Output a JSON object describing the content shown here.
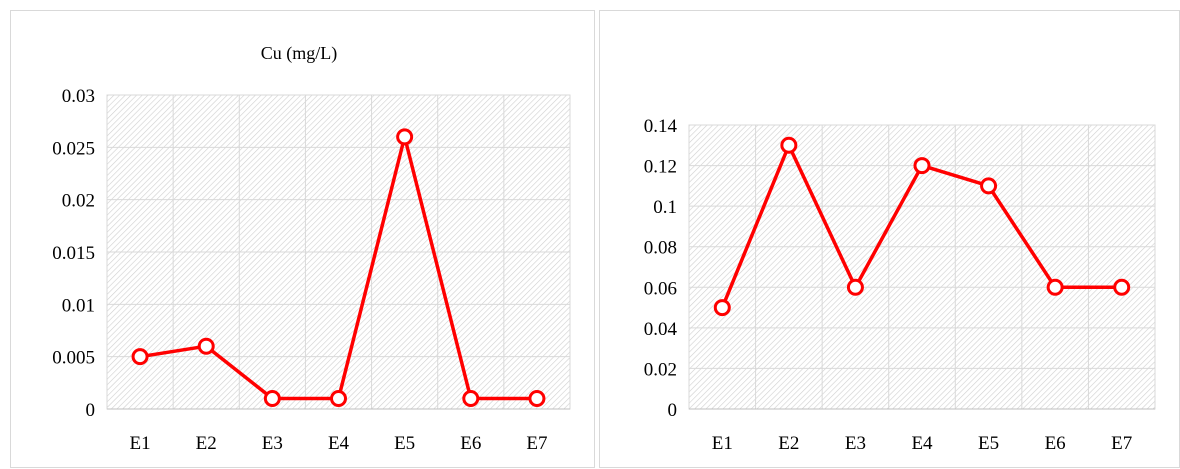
{
  "chart_data": [
    {
      "type": "line",
      "title": "Cu (mg/L)",
      "categories": [
        "E1",
        "E2",
        "E3",
        "E4",
        "E5",
        "E6",
        "E7"
      ],
      "series": [
        {
          "values": [
            0.005,
            0.006,
            0.001,
            0.001,
            0.026,
            0.001,
            0.001
          ]
        }
      ],
      "ylim": [
        0,
        0.03
      ],
      "yticks": [
        "0",
        "0.005",
        "0.01",
        "0.015",
        "0.02",
        "0.025",
        "0.03"
      ],
      "grid": true,
      "plot_fill": "diagonal-hatch",
      "line_color": "#ff0000",
      "marker": "hollow-circle"
    },
    {
      "type": "line",
      "title": "",
      "categories": [
        "E1",
        "E2",
        "E3",
        "E4",
        "E5",
        "E6",
        "E7"
      ],
      "series": [
        {
          "values": [
            0.05,
            0.13,
            0.06,
            0.12,
            0.11,
            0.06,
            0.06
          ]
        }
      ],
      "ylim": [
        0,
        0.14
      ],
      "yticks": [
        "0",
        "0.02",
        "0.04",
        "0.06",
        "0.08",
        "0.1",
        "0.12",
        "0.14"
      ],
      "grid": true,
      "plot_fill": "diagonal-hatch",
      "line_color": "#ff0000",
      "marker": "hollow-circle"
    }
  ]
}
